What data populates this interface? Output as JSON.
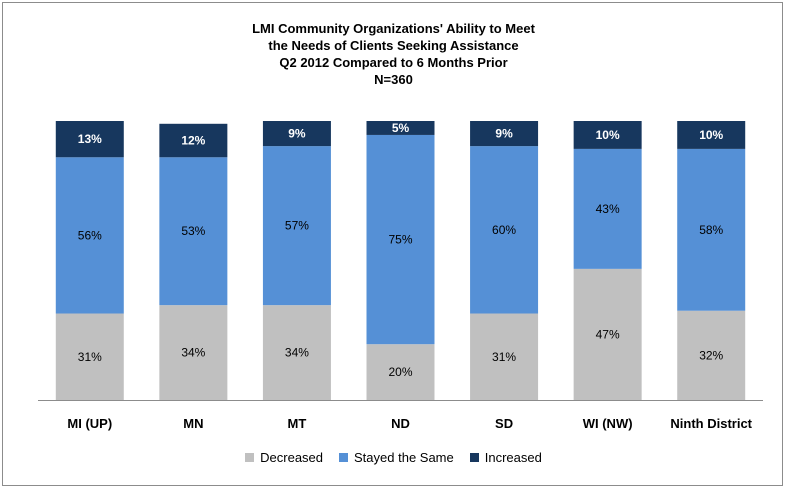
{
  "chart_data": {
    "type": "bar",
    "stacked": true,
    "percent": true,
    "title_lines": [
      "LMI Community Organizations' Ability to Meet",
      "the Needs of Clients Seeking Assistance",
      "Q2 2012 Compared to 6 Months Prior",
      "N=360"
    ],
    "categories": [
      "MI (UP)",
      "MN",
      "MT",
      "ND",
      "SD",
      "WI (NW)",
      "Ninth District"
    ],
    "series": [
      {
        "name": "Decreased",
        "color": "#c0c0c0",
        "values": [
          31,
          34,
          34,
          20,
          31,
          47,
          32
        ],
        "labels": [
          "31%",
          "34%",
          "34%",
          "20%",
          "31%",
          "47%",
          "32%"
        ]
      },
      {
        "name": "Stayed the Same",
        "color": "#5590d6",
        "values": [
          56,
          53,
          57,
          75,
          60,
          43,
          58
        ],
        "labels": [
          "56%",
          "53%",
          "57%",
          "75%",
          "60%",
          "43%",
          "58%"
        ]
      },
      {
        "name": "Increased",
        "color": "#17375e",
        "values": [
          13,
          12,
          9,
          5,
          9,
          10,
          10
        ],
        "labels": [
          "13%",
          "12%",
          "9%",
          "5%",
          "9%",
          "10%",
          "10%"
        ]
      }
    ],
    "ylim": [
      0,
      100
    ],
    "legend_position": "bottom",
    "grid": false
  }
}
